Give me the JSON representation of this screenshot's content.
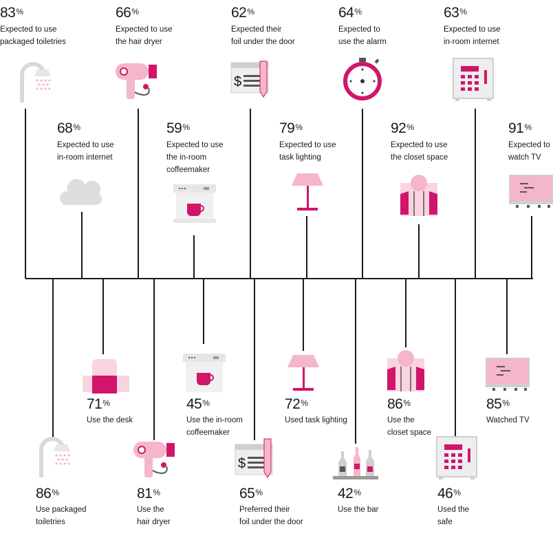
{
  "colors": {
    "magenta": "#d0156b",
    "pink": "#f4b6c9",
    "light_pink": "#f9d4df",
    "gray": "#cfcfcf",
    "light_gray": "#e6e6e6",
    "dark": "#555555",
    "line": "#1a1a1a"
  },
  "top_row1": [
    {
      "pct": "83",
      "label": "Expected to use\npackaged toiletries",
      "icon": "shower-icon"
    },
    {
      "pct": "66",
      "label": "Expected to use\nthe hair dryer",
      "icon": "hair-dryer-icon"
    },
    {
      "pct": "62",
      "label": "Expected their\nfoil under the door",
      "icon": "bill-icon"
    },
    {
      "pct": "64",
      "label": "Expected to\nuse the alarm",
      "icon": "alarm-clock-icon"
    },
    {
      "pct": "63",
      "label": "Expected to use\nin-room internet",
      "icon": "safe-icon"
    }
  ],
  "top_row2": [
    {
      "pct": "68",
      "label": "Expected to use\nin-room internet",
      "icon": "cloud-icon"
    },
    {
      "pct": "59",
      "label": "Expected to use\nthe in-room\ncoffeemaker",
      "icon": "coffeemaker-icon"
    },
    {
      "pct": "79",
      "label": "Expected to use\ntask lighting",
      "icon": "lamp-icon"
    },
    {
      "pct": "92",
      "label": "Expected to use\nthe closet space",
      "icon": "jacket-icon"
    },
    {
      "pct": "91",
      "label": "Expected to\nwatch TV",
      "icon": "tv-icon"
    }
  ],
  "bottom_row1": [
    {
      "pct": "71",
      "label": "Use the desk",
      "icon": "chair-icon"
    },
    {
      "pct": "45",
      "label": "Use the in-room\ncoffeemaker",
      "icon": "coffeemaker-icon"
    },
    {
      "pct": "72",
      "label": "Used task lighting",
      "icon": "lamp-icon"
    },
    {
      "pct": "86",
      "label": "Use the\ncloset space",
      "icon": "jacket-icon"
    },
    {
      "pct": "85",
      "label": "Watched TV",
      "icon": "tv-icon"
    }
  ],
  "bottom_row2": [
    {
      "pct": "86",
      "label": "Use packaged\n toiletries",
      "icon": "shower-icon"
    },
    {
      "pct": "81",
      "label": "Use the\nhair dryer",
      "icon": "hair-dryer-icon"
    },
    {
      "pct": "65",
      "label": "Preferred their\nfoil under the door",
      "icon": "bill-icon"
    },
    {
      "pct": "42",
      "label": "Use the bar",
      "icon": "bar-bottles-icon"
    },
    {
      "pct": "46",
      "label": "Used the\nsafe",
      "icon": "safe-icon"
    }
  ],
  "percent_sign": "%"
}
